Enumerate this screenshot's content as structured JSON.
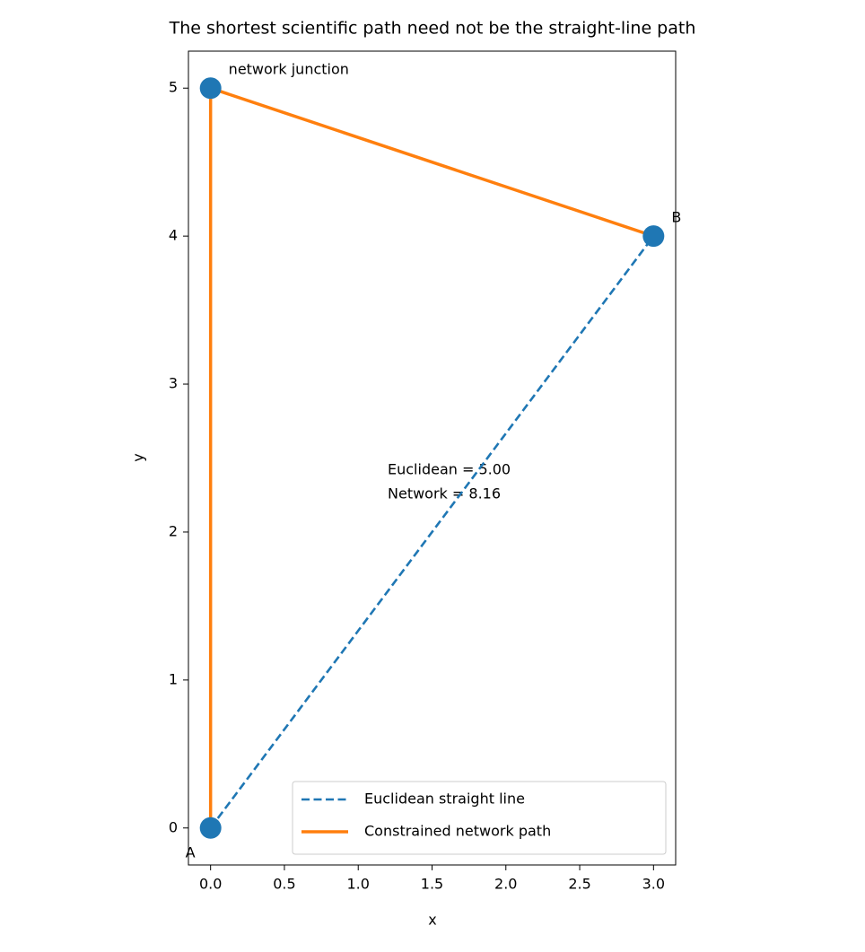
{
  "chart_data": {
    "type": "line",
    "title": "The shortest scientific path need not be the straight-line path",
    "x_label": "x",
    "y_label": "y",
    "xlim": [
      -0.15,
      3.15
    ],
    "ylim": [
      -0.25,
      5.25
    ],
    "xticks": [
      {
        "value": 0,
        "label": "0.0"
      },
      {
        "value": 0.5,
        "label": "0.5"
      },
      {
        "value": 1,
        "label": "1.0"
      },
      {
        "value": 1.5,
        "label": "1.5"
      },
      {
        "value": 2,
        "label": "2.0"
      },
      {
        "value": 2.5,
        "label": "2.5"
      },
      {
        "value": 3,
        "label": "3.0"
      }
    ],
    "yticks": [
      0,
      1,
      2,
      3,
      4,
      5
    ],
    "grid": false,
    "legend": "lower right",
    "series": [
      {
        "name": "Euclidean straight line",
        "color": "#1f77b4",
        "dashed": true,
        "x": [
          0,
          3
        ],
        "values": [
          0,
          4
        ]
      },
      {
        "name": "Constrained network path",
        "color": "#ff7f0e",
        "dashed": false,
        "x": [
          0,
          0,
          3
        ],
        "values": [
          0,
          5,
          4
        ]
      }
    ],
    "points": {
      "color": "#1f77b4",
      "x": [
        0,
        3,
        0
      ],
      "y": [
        0,
        4,
        5
      ],
      "labels": [
        "A",
        "B",
        "network junction"
      ]
    },
    "annotation": [
      "Euclidean = 5.00",
      "Network = 8.16"
    ]
  }
}
